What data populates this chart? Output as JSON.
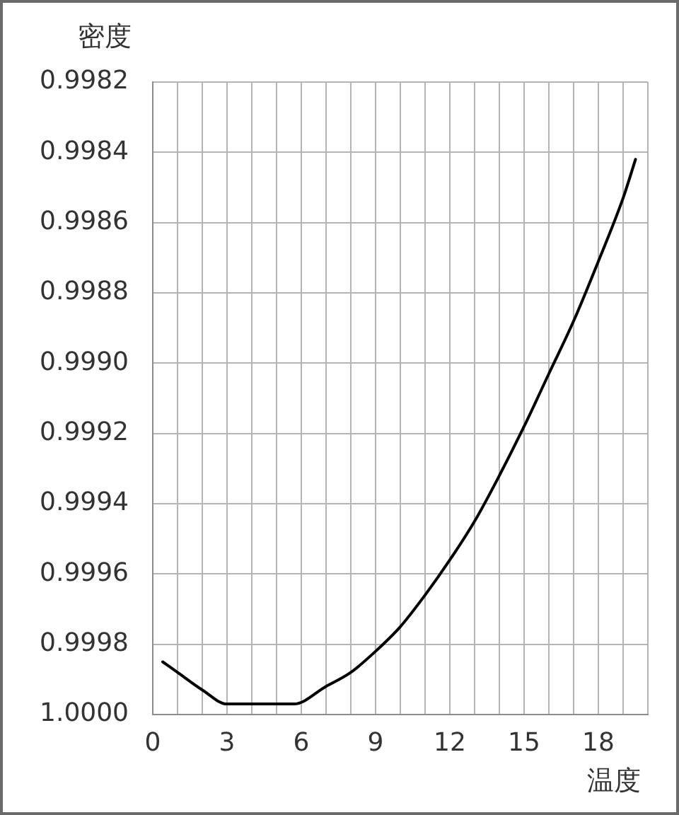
{
  "chart_data": {
    "type": "line",
    "xlabel": "温度",
    "ylabel": "密度",
    "x": [
      0.4,
      1,
      2,
      3,
      4,
      5,
      5.7,
      7,
      8,
      9,
      10,
      11,
      12,
      13,
      14,
      15,
      16,
      17,
      18,
      19,
      19.5
    ],
    "series": [
      {
        "color": "#000000",
        "values": [
          0.99985,
          0.99988,
          0.99993,
          0.99997,
          0.99997,
          0.99997,
          0.99997,
          0.99992,
          0.99988,
          0.99982,
          0.99975,
          0.99966,
          0.99956,
          0.99945,
          0.99932,
          0.99918,
          0.99903,
          0.99888,
          0.99871,
          0.99853,
          0.99842
        ]
      }
    ],
    "xlim": [
      0,
      20
    ],
    "xticks": [
      0,
      {
        "value": 1,
        "label": null
      },
      {
        "value": 2,
        "label": null
      },
      3,
      {
        "value": 4,
        "label": null
      },
      {
        "value": 5,
        "label": null
      },
      6,
      {
        "value": 7,
        "label": null
      },
      {
        "value": 8,
        "label": null
      },
      9,
      {
        "value": 10,
        "label": null
      },
      {
        "value": 11,
        "label": null
      },
      12,
      {
        "value": 13,
        "label": null
      },
      {
        "value": 14,
        "label": null
      },
      15,
      {
        "value": 16,
        "label": null
      },
      {
        "value": 17,
        "label": null
      },
      18,
      {
        "value": 19,
        "label": null
      },
      {
        "value": 20,
        "label": null
      }
    ],
    "ylim": [
      1,
      0.9982
    ],
    "yticks": [
      0.9982,
      0.9984,
      0.9986,
      0.9988,
      {
        "value": 0.999,
        "label": "0.9990"
      },
      0.9992,
      0.9994,
      0.9996,
      0.9998,
      {
        "value": 1,
        "label": "1.0000"
      }
    ],
    "grid": true,
    "marker": "none",
    "line_style": "solid"
  }
}
